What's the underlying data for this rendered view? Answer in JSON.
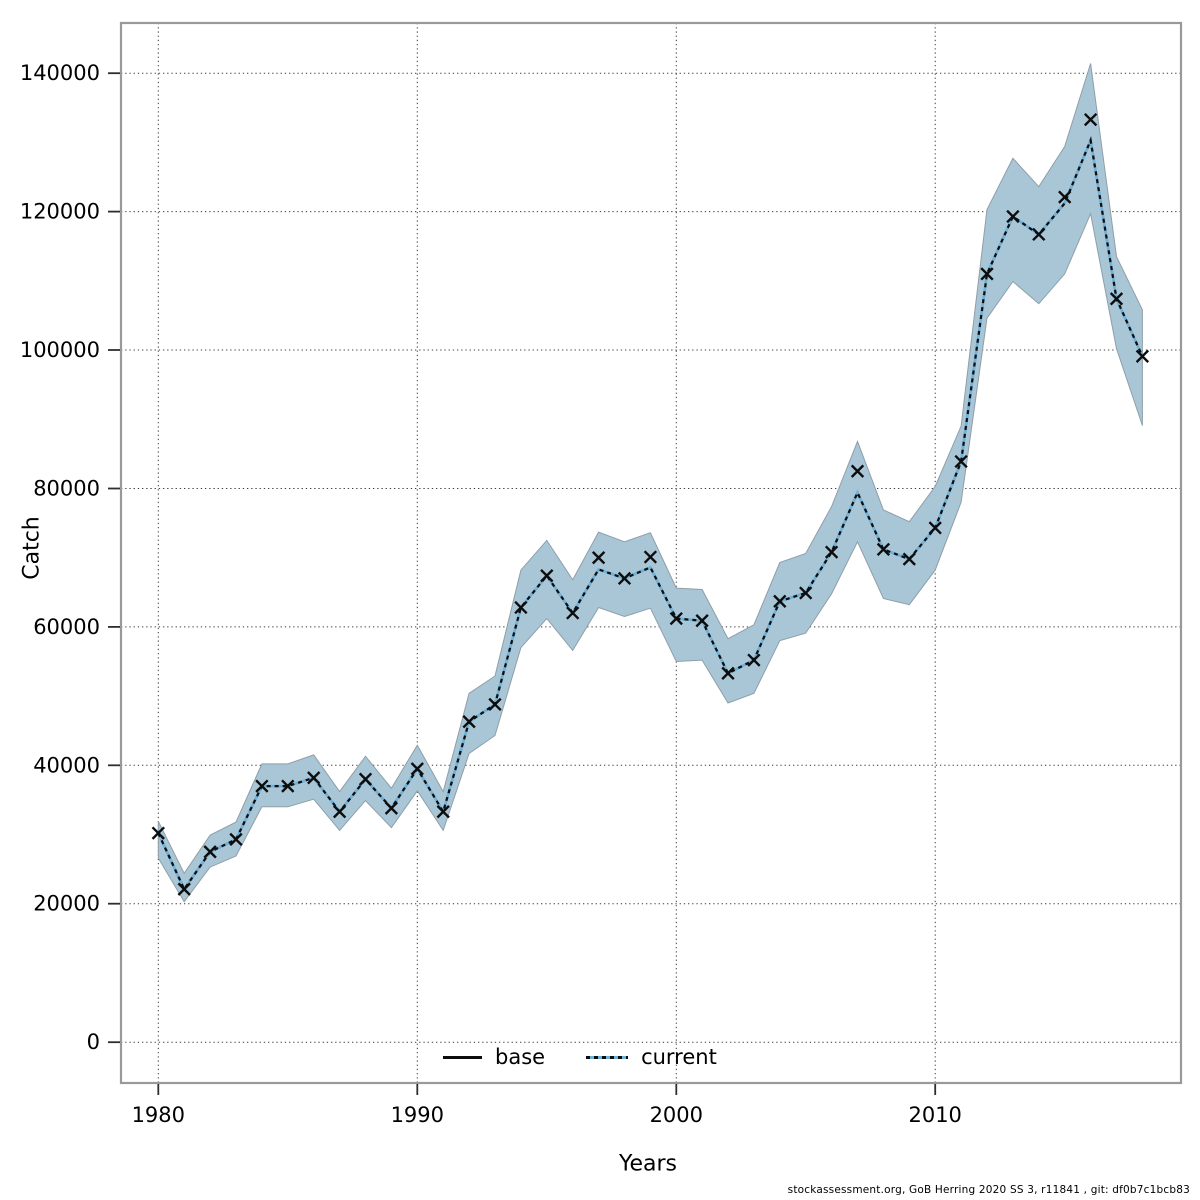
{
  "figure": {
    "background": "#ffffff"
  },
  "caption": "stockassessment.org, GoB Herring 2020 SS 3, r11841 , git: df0b7c1bcb83",
  "legend": {
    "position": "bottom-center-inside",
    "items": [
      {
        "label": "base",
        "style": "solid-black-line"
      },
      {
        "label": "current",
        "style": "dashed-black-over-blue-line"
      }
    ]
  },
  "colors": {
    "grid": "#3c3c3c",
    "border": "#999999",
    "tick": "#2e2e2e",
    "text": "#000000",
    "band_fill": "#a9c6d7",
    "band_edge": "#8f9ea8",
    "current_blue": "#6fb1d8",
    "line_black": "#0d0d0d"
  },
  "chart_data": {
    "type": "line",
    "title": "",
    "xlabel": "Years",
    "ylabel": "Catch",
    "grid": true,
    "legend_position": "bottom-center-inside",
    "xticks": [
      1980,
      1990,
      2000,
      2010
    ],
    "yticks": [
      0,
      20000,
      40000,
      60000,
      80000,
      100000,
      120000,
      140000
    ],
    "xlim": [
      1978.56,
      2019.49
    ],
    "ylim": [
      -5900,
      147250
    ],
    "years": [
      1980,
      1981,
      1982,
      1983,
      1984,
      1985,
      1986,
      1987,
      1988,
      1989,
      1990,
      1991,
      1992,
      1993,
      1994,
      1995,
      1996,
      1997,
      1998,
      1999,
      2000,
      2001,
      2002,
      2003,
      2004,
      2005,
      2006,
      2007,
      2008,
      2009,
      2010,
      2011,
      2012,
      2013,
      2014,
      2015,
      2016,
      2017,
      2018
    ],
    "series": [
      {
        "name": "base",
        "marker": "x",
        "line": "solid",
        "color": "#0d0d0d",
        "values": [
          30200,
          22100,
          27500,
          29300,
          37000,
          37000,
          38200,
          33300,
          38000,
          33800,
          39500,
          33300,
          46300,
          48800,
          62800,
          67400,
          62000,
          70000,
          67000,
          70100,
          61200,
          60900,
          53300,
          55200,
          63700,
          64900,
          70800,
          82500,
          71200,
          69800,
          74300,
          83900,
          111000,
          119300,
          116700,
          122100,
          133300,
          107400,
          99100
        ]
      },
      {
        "name": "current",
        "marker": "none",
        "line": "dashed",
        "color": "#6fb1d8",
        "dash_color": "#0d0d0d",
        "values": [
          30200,
          22100,
          27500,
          29300,
          37000,
          37000,
          38200,
          33300,
          38000,
          33800,
          39500,
          33300,
          46300,
          48800,
          62800,
          67400,
          62000,
          68300,
          67000,
          68600,
          61200,
          60900,
          53300,
          55200,
          63700,
          64900,
          70800,
          79400,
          71200,
          69800,
          74300,
          83900,
          111000,
          119300,
          116700,
          121200,
          130300,
          107400,
          99100
        ]
      }
    ],
    "band": {
      "series": "current",
      "fill": "#a9c6d7",
      "edge": "#8f9ea8",
      "lower": [
        26600,
        20300,
        25300,
        26900,
        34000,
        34000,
        35100,
        30600,
        34900,
        31000,
        36300,
        30600,
        41700,
        44300,
        57000,
        61200,
        56600,
        62800,
        61500,
        62700,
        55000,
        55200,
        49000,
        50400,
        58000,
        59100,
        64800,
        72300,
        64100,
        63200,
        68200,
        78000,
        104600,
        109900,
        106700,
        111000,
        119700,
        100200,
        89100
      ],
      "upper": [
        31900,
        24400,
        29900,
        31800,
        40200,
        40200,
        41500,
        36200,
        41300,
        36700,
        42900,
        36200,
        50400,
        52900,
        68200,
        72500,
        66800,
        73700,
        72300,
        73600,
        65600,
        65400,
        58300,
        60300,
        69300,
        70600,
        77400,
        86800,
        76900,
        75200,
        80300,
        89000,
        120300,
        127700,
        123600,
        129400,
        141400,
        113500,
        105800
      ]
    }
  }
}
